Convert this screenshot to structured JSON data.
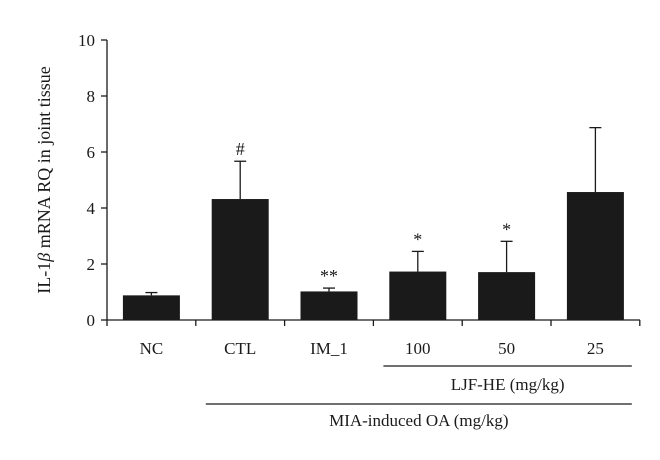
{
  "chart_data": {
    "type": "bar",
    "title": "",
    "xlabel": "",
    "ylabel": "IL-1β mRNA RQ in joint tissue",
    "ylabel_parts": {
      "prefix": "IL-1",
      "italic": "β",
      "suffix": " mRNA RQ in joint tissue"
    },
    "ylim": [
      0,
      10
    ],
    "yticks": [
      "0",
      "2",
      "4",
      "6",
      "8",
      "10"
    ],
    "ytick_values": [
      0,
      2,
      4,
      6,
      8,
      10
    ],
    "grid": false,
    "categories": [
      "NC",
      "CTL",
      "IM_1",
      "100",
      "50",
      "25"
    ],
    "values": [
      0.88,
      4.32,
      1.02,
      1.73,
      1.71,
      4.57
    ],
    "errors": [
      0.1,
      1.35,
      0.12,
      0.72,
      1.1,
      2.3
    ],
    "annotations": [
      "",
      "#",
      "**",
      "*",
      "*",
      ""
    ],
    "bar_color": "#1a1a1a",
    "group_labels": [
      {
        "label": "LJF-HE (mg/kg)",
        "from": 3,
        "to": 5
      },
      {
        "label": "MIA-induced OA (mg/kg)",
        "from": 1,
        "to": 5
      }
    ]
  }
}
